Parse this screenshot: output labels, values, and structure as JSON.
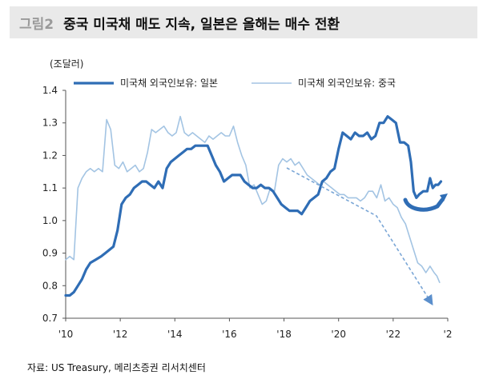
{
  "header": {
    "figure_label": "그림2",
    "title": "중국 미국채 매도 지속, 일본은 올해는 매수 전환"
  },
  "source": "자료: US Treasury, 메리츠증권 리서치센터",
  "colors": {
    "japan": "#2f6db5",
    "china": "#a3c4e3",
    "arrow": "#7aa6d6",
    "title_bg": "#e9e9e9"
  },
  "chart_data": {
    "type": "line",
    "unit_label": "(조달러)",
    "ylim": [
      0.7,
      1.4
    ],
    "y_ticks": [
      "0.7",
      "0.8",
      "0.9",
      "1.0",
      "1.1",
      "1.2",
      "1.3",
      "1.4"
    ],
    "xlim": [
      2010,
      2024
    ],
    "x_ticks": [
      {
        "x": 2010,
        "label": "'10"
      },
      {
        "x": 2012,
        "label": "'12"
      },
      {
        "x": 2014,
        "label": "'14"
      },
      {
        "x": 2016,
        "label": "'16"
      },
      {
        "x": 2018,
        "label": "'18"
      },
      {
        "x": 2020,
        "label": "'20"
      },
      {
        "x": 2022,
        "label": "'22"
      },
      {
        "x": 2024,
        "label": "'2"
      }
    ],
    "legend_position": "top",
    "grid": false,
    "series": [
      {
        "name": "미국채 외국인보유: 일본",
        "color": "#2f6db5",
        "width": 3.2,
        "points": [
          [
            2010.0,
            0.77
          ],
          [
            2010.15,
            0.77
          ],
          [
            2010.3,
            0.78
          ],
          [
            2010.45,
            0.8
          ],
          [
            2010.6,
            0.82
          ],
          [
            2010.75,
            0.85
          ],
          [
            2010.9,
            0.87
          ],
          [
            2011.1,
            0.88
          ],
          [
            2011.3,
            0.89
          ],
          [
            2011.45,
            0.9
          ],
          [
            2011.6,
            0.91
          ],
          [
            2011.75,
            0.92
          ],
          [
            2011.9,
            0.97
          ],
          [
            2012.05,
            1.05
          ],
          [
            2012.2,
            1.07
          ],
          [
            2012.35,
            1.08
          ],
          [
            2012.5,
            1.1
          ],
          [
            2012.65,
            1.11
          ],
          [
            2012.8,
            1.12
          ],
          [
            2012.95,
            1.12
          ],
          [
            2013.1,
            1.11
          ],
          [
            2013.25,
            1.1
          ],
          [
            2013.4,
            1.12
          ],
          [
            2013.55,
            1.1
          ],
          [
            2013.7,
            1.16
          ],
          [
            2013.85,
            1.18
          ],
          [
            2014.0,
            1.19
          ],
          [
            2014.15,
            1.2
          ],
          [
            2014.3,
            1.21
          ],
          [
            2014.45,
            1.22
          ],
          [
            2014.6,
            1.22
          ],
          [
            2014.75,
            1.23
          ],
          [
            2014.9,
            1.23
          ],
          [
            2015.05,
            1.23
          ],
          [
            2015.2,
            1.23
          ],
          [
            2015.35,
            1.2
          ],
          [
            2015.5,
            1.17
          ],
          [
            2015.65,
            1.15
          ],
          [
            2015.8,
            1.12
          ],
          [
            2015.95,
            1.13
          ],
          [
            2016.1,
            1.14
          ],
          [
            2016.25,
            1.14
          ],
          [
            2016.4,
            1.14
          ],
          [
            2016.55,
            1.12
          ],
          [
            2016.7,
            1.11
          ],
          [
            2016.85,
            1.1
          ],
          [
            2017.0,
            1.1
          ],
          [
            2017.15,
            1.11
          ],
          [
            2017.3,
            1.1
          ],
          [
            2017.45,
            1.1
          ],
          [
            2017.6,
            1.09
          ],
          [
            2017.75,
            1.07
          ],
          [
            2017.9,
            1.05
          ],
          [
            2018.05,
            1.04
          ],
          [
            2018.2,
            1.03
          ],
          [
            2018.35,
            1.03
          ],
          [
            2018.5,
            1.03
          ],
          [
            2018.65,
            1.02
          ],
          [
            2018.8,
            1.04
          ],
          [
            2018.95,
            1.06
          ],
          [
            2019.1,
            1.07
          ],
          [
            2019.25,
            1.08
          ],
          [
            2019.4,
            1.12
          ],
          [
            2019.55,
            1.13
          ],
          [
            2019.7,
            1.15
          ],
          [
            2019.85,
            1.16
          ],
          [
            2020.0,
            1.22
          ],
          [
            2020.15,
            1.27
          ],
          [
            2020.3,
            1.26
          ],
          [
            2020.45,
            1.25
          ],
          [
            2020.6,
            1.27
          ],
          [
            2020.75,
            1.26
          ],
          [
            2020.9,
            1.26
          ],
          [
            2021.05,
            1.27
          ],
          [
            2021.2,
            1.25
          ],
          [
            2021.35,
            1.26
          ],
          [
            2021.5,
            1.3
          ],
          [
            2021.65,
            1.3
          ],
          [
            2021.8,
            1.32
          ],
          [
            2021.95,
            1.31
          ],
          [
            2022.1,
            1.3
          ],
          [
            2022.25,
            1.24
          ],
          [
            2022.4,
            1.24
          ],
          [
            2022.55,
            1.23
          ],
          [
            2022.65,
            1.18
          ],
          [
            2022.75,
            1.09
          ],
          [
            2022.85,
            1.07
          ],
          [
            2022.95,
            1.08
          ],
          [
            2023.1,
            1.09
          ],
          [
            2023.25,
            1.09
          ],
          [
            2023.35,
            1.13
          ],
          [
            2023.45,
            1.1
          ],
          [
            2023.55,
            1.11
          ],
          [
            2023.65,
            1.11
          ],
          [
            2023.75,
            1.12
          ]
        ]
      },
      {
        "name": "미국채 외국인보유: 중국",
        "color": "#a3c4e3",
        "width": 1.6,
        "points": [
          [
            2010.0,
            0.88
          ],
          [
            2010.15,
            0.89
          ],
          [
            2010.3,
            0.88
          ],
          [
            2010.45,
            1.1
          ],
          [
            2010.6,
            1.13
          ],
          [
            2010.75,
            1.15
          ],
          [
            2010.9,
            1.16
          ],
          [
            2011.05,
            1.15
          ],
          [
            2011.2,
            1.16
          ],
          [
            2011.35,
            1.15
          ],
          [
            2011.5,
            1.31
          ],
          [
            2011.65,
            1.28
          ],
          [
            2011.8,
            1.17
          ],
          [
            2011.95,
            1.16
          ],
          [
            2012.1,
            1.18
          ],
          [
            2012.25,
            1.15
          ],
          [
            2012.4,
            1.16
          ],
          [
            2012.55,
            1.17
          ],
          [
            2012.7,
            1.15
          ],
          [
            2012.85,
            1.16
          ],
          [
            2013.0,
            1.21
          ],
          [
            2013.15,
            1.28
          ],
          [
            2013.3,
            1.27
          ],
          [
            2013.45,
            1.28
          ],
          [
            2013.6,
            1.29
          ],
          [
            2013.75,
            1.27
          ],
          [
            2013.9,
            1.26
          ],
          [
            2014.05,
            1.27
          ],
          [
            2014.2,
            1.32
          ],
          [
            2014.35,
            1.27
          ],
          [
            2014.5,
            1.26
          ],
          [
            2014.65,
            1.27
          ],
          [
            2014.8,
            1.26
          ],
          [
            2014.95,
            1.25
          ],
          [
            2015.1,
            1.24
          ],
          [
            2015.25,
            1.26
          ],
          [
            2015.4,
            1.25
          ],
          [
            2015.55,
            1.26
          ],
          [
            2015.7,
            1.27
          ],
          [
            2015.85,
            1.26
          ],
          [
            2016.0,
            1.26
          ],
          [
            2016.15,
            1.29
          ],
          [
            2016.3,
            1.24
          ],
          [
            2016.45,
            1.2
          ],
          [
            2016.6,
            1.17
          ],
          [
            2016.75,
            1.1
          ],
          [
            2016.9,
            1.11
          ],
          [
            2017.05,
            1.08
          ],
          [
            2017.2,
            1.05
          ],
          [
            2017.35,
            1.06
          ],
          [
            2017.5,
            1.1
          ],
          [
            2017.65,
            1.09
          ],
          [
            2017.8,
            1.17
          ],
          [
            2017.95,
            1.19
          ],
          [
            2018.1,
            1.18
          ],
          [
            2018.25,
            1.19
          ],
          [
            2018.4,
            1.17
          ],
          [
            2018.55,
            1.18
          ],
          [
            2018.7,
            1.16
          ],
          [
            2018.85,
            1.14
          ],
          [
            2019.0,
            1.13
          ],
          [
            2019.15,
            1.12
          ],
          [
            2019.3,
            1.11
          ],
          [
            2019.45,
            1.12
          ],
          [
            2019.6,
            1.11
          ],
          [
            2019.75,
            1.1
          ],
          [
            2019.9,
            1.09
          ],
          [
            2020.05,
            1.08
          ],
          [
            2020.2,
            1.08
          ],
          [
            2020.35,
            1.07
          ],
          [
            2020.5,
            1.07
          ],
          [
            2020.65,
            1.07
          ],
          [
            2020.8,
            1.06
          ],
          [
            2020.95,
            1.07
          ],
          [
            2021.1,
            1.09
          ],
          [
            2021.25,
            1.09
          ],
          [
            2021.4,
            1.07
          ],
          [
            2021.55,
            1.11
          ],
          [
            2021.7,
            1.06
          ],
          [
            2021.85,
            1.07
          ],
          [
            2022.0,
            1.05
          ],
          [
            2022.15,
            1.04
          ],
          [
            2022.3,
            1.01
          ],
          [
            2022.45,
            0.99
          ],
          [
            2022.6,
            0.95
          ],
          [
            2022.75,
            0.91
          ],
          [
            2022.9,
            0.87
          ],
          [
            2023.05,
            0.86
          ],
          [
            2023.2,
            0.84
          ],
          [
            2023.35,
            0.86
          ],
          [
            2023.5,
            0.84
          ],
          [
            2023.6,
            0.83
          ],
          [
            2023.7,
            0.81
          ]
        ]
      }
    ]
  }
}
